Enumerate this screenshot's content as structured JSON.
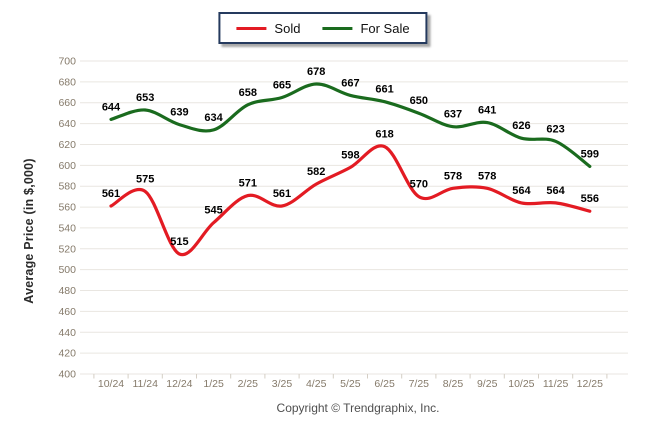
{
  "legend": {
    "items": [
      {
        "label": "Sold",
        "color": "#e31b23"
      },
      {
        "label": "For Sale",
        "color": "#1a6b1e"
      }
    ]
  },
  "ylabel": "Average Price (in $,000)",
  "footer": "Copyright © Trendgraphix, Inc.",
  "chart_data": {
    "type": "line",
    "title": "",
    "xlabel": "",
    "ylabel": "Average Price (in $,000)",
    "categories": [
      "10/24",
      "11/24",
      "12/24",
      "1/25",
      "2/25",
      "3/25",
      "4/25",
      "5/25",
      "6/25",
      "7/25",
      "8/25",
      "9/25",
      "10/25",
      "11/25",
      "12/25"
    ],
    "series": [
      {
        "name": "Sold",
        "color": "#e31b23",
        "values": [
          561,
          575,
          515,
          545,
          571,
          561,
          582,
          598,
          618,
          570,
          578,
          578,
          564,
          564,
          556
        ]
      },
      {
        "name": "For Sale",
        "color": "#1a6b1e",
        "values": [
          644,
          653,
          639,
          634,
          658,
          665,
          678,
          667,
          661,
          650,
          637,
          641,
          626,
          623,
          599
        ]
      }
    ],
    "ylim": [
      400,
      700
    ],
    "ytick_step": 20,
    "grid": true,
    "smooth": true,
    "legend_position": "top-center",
    "colors": {
      "grid_line": "#e9e6e1",
      "axis_tick_text": "#857a6a",
      "axis_tick_mark": "#d4cec5",
      "data_label": "#000000"
    }
  }
}
